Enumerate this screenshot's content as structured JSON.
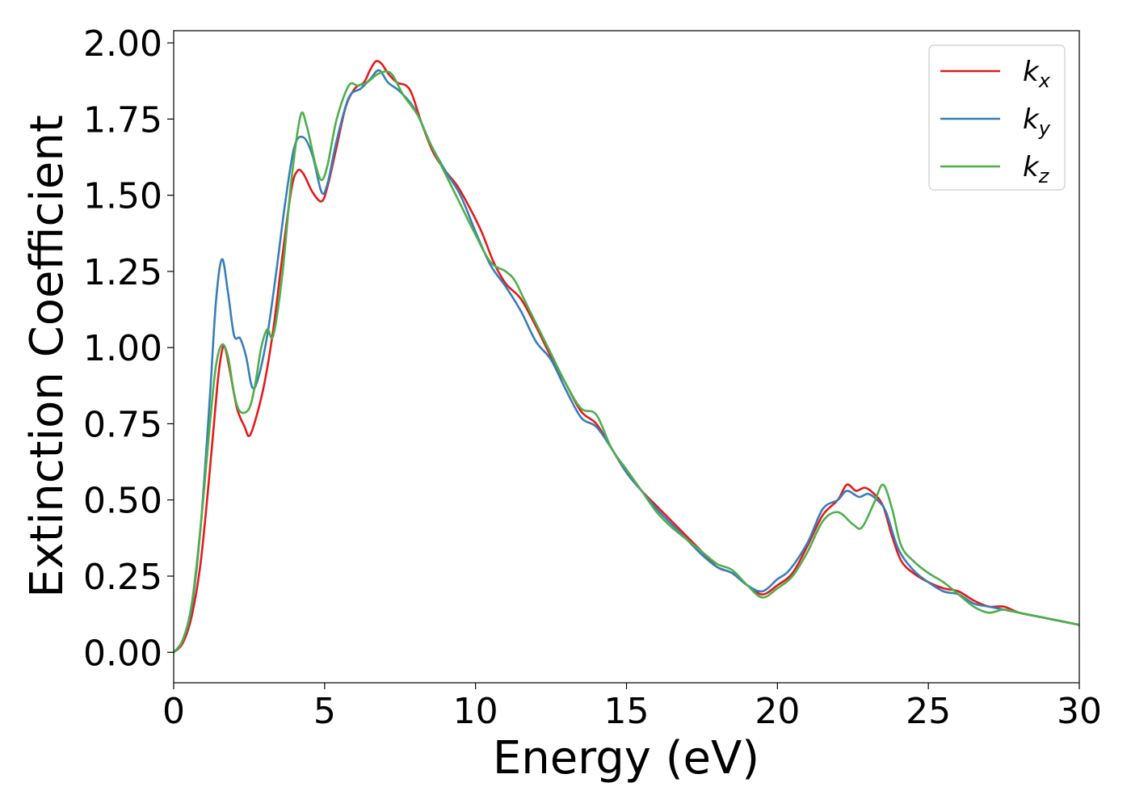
{
  "chart_data": {
    "type": "line",
    "title": "",
    "xlabel": "Energy (eV)",
    "ylabel": "Extinction Coefficient",
    "xlim": [
      0,
      30
    ],
    "ylim": [
      -0.1,
      2.04
    ],
    "x_ticks": [
      0,
      5,
      10,
      15,
      20,
      25,
      30
    ],
    "x_tick_labels": [
      "0",
      "5",
      "10",
      "15",
      "20",
      "25",
      "30"
    ],
    "y_ticks": [
      0.0,
      0.25,
      0.5,
      0.75,
      1.0,
      1.25,
      1.5,
      1.75,
      2.0
    ],
    "y_tick_labels": [
      "0.00",
      "0.25",
      "0.50",
      "0.75",
      "1.00",
      "1.25",
      "1.50",
      "1.75",
      "2.00"
    ],
    "grid": false,
    "legend_position": "top-right",
    "series": [
      {
        "name": "k_x",
        "label_main": "k",
        "label_sub": "x",
        "color": "#e41a1c",
        "points": [
          [
            0,
            0
          ],
          [
            0.3,
            0.03
          ],
          [
            0.6,
            0.12
          ],
          [
            0.9,
            0.3
          ],
          [
            1.2,
            0.6
          ],
          [
            1.45,
            0.88
          ],
          [
            1.6,
            0.99
          ],
          [
            1.7,
            1.0
          ],
          [
            1.85,
            0.93
          ],
          [
            2.1,
            0.8
          ],
          [
            2.35,
            0.74
          ],
          [
            2.5,
            0.71
          ],
          [
            2.7,
            0.76
          ],
          [
            3.0,
            0.88
          ],
          [
            3.3,
            1.06
          ],
          [
            3.6,
            1.3
          ],
          [
            3.9,
            1.52
          ],
          [
            4.1,
            1.58
          ],
          [
            4.3,
            1.57
          ],
          [
            4.6,
            1.51
          ],
          [
            4.9,
            1.48
          ],
          [
            5.1,
            1.53
          ],
          [
            5.4,
            1.66
          ],
          [
            5.7,
            1.79
          ],
          [
            6.0,
            1.85
          ],
          [
            6.3,
            1.87
          ],
          [
            6.5,
            1.91
          ],
          [
            6.7,
            1.94
          ],
          [
            6.9,
            1.93
          ],
          [
            7.1,
            1.9
          ],
          [
            7.4,
            1.87
          ],
          [
            7.7,
            1.86
          ],
          [
            7.9,
            1.83
          ],
          [
            8.2,
            1.74
          ],
          [
            8.6,
            1.64
          ],
          [
            9.0,
            1.58
          ],
          [
            9.4,
            1.53
          ],
          [
            9.8,
            1.46
          ],
          [
            10.2,
            1.38
          ],
          [
            10.6,
            1.28
          ],
          [
            11.0,
            1.21
          ],
          [
            11.5,
            1.16
          ],
          [
            12.0,
            1.07
          ],
          [
            12.5,
            0.97
          ],
          [
            13.0,
            0.88
          ],
          [
            13.5,
            0.79
          ],
          [
            14.0,
            0.75
          ],
          [
            14.5,
            0.67
          ],
          [
            15.0,
            0.59
          ],
          [
            15.5,
            0.53
          ],
          [
            16.0,
            0.48
          ],
          [
            16.5,
            0.43
          ],
          [
            17.0,
            0.38
          ],
          [
            17.5,
            0.33
          ],
          [
            18.0,
            0.28
          ],
          [
            18.5,
            0.26
          ],
          [
            19.0,
            0.22
          ],
          [
            19.5,
            0.19
          ],
          [
            20.0,
            0.22
          ],
          [
            20.5,
            0.26
          ],
          [
            21.0,
            0.35
          ],
          [
            21.5,
            0.45
          ],
          [
            22.0,
            0.5
          ],
          [
            22.3,
            0.55
          ],
          [
            22.6,
            0.53
          ],
          [
            22.9,
            0.54
          ],
          [
            23.2,
            0.52
          ],
          [
            23.5,
            0.48
          ],
          [
            23.8,
            0.38
          ],
          [
            24.1,
            0.3
          ],
          [
            24.5,
            0.26
          ],
          [
            25.0,
            0.23
          ],
          [
            25.5,
            0.21
          ],
          [
            26.0,
            0.2
          ],
          [
            26.5,
            0.17
          ],
          [
            27.0,
            0.15
          ],
          [
            27.5,
            0.15
          ],
          [
            28.0,
            0.13
          ],
          [
            28.5,
            0.12
          ],
          [
            29.0,
            0.11
          ],
          [
            29.5,
            0.1
          ],
          [
            30.0,
            0.09
          ]
        ]
      },
      {
        "name": "k_y",
        "label_main": "k",
        "label_sub": "y",
        "color": "#377eb8",
        "points": [
          [
            0,
            0
          ],
          [
            0.3,
            0.04
          ],
          [
            0.6,
            0.15
          ],
          [
            0.9,
            0.42
          ],
          [
            1.2,
            0.84
          ],
          [
            1.4,
            1.15
          ],
          [
            1.6,
            1.29
          ],
          [
            1.8,
            1.18
          ],
          [
            2.0,
            1.04
          ],
          [
            2.2,
            1.03
          ],
          [
            2.4,
            0.97
          ],
          [
            2.6,
            0.87
          ],
          [
            2.8,
            0.9
          ],
          [
            3.1,
            1.04
          ],
          [
            3.4,
            1.25
          ],
          [
            3.7,
            1.48
          ],
          [
            4.0,
            1.66
          ],
          [
            4.3,
            1.69
          ],
          [
            4.6,
            1.63
          ],
          [
            4.9,
            1.51
          ],
          [
            5.1,
            1.54
          ],
          [
            5.4,
            1.68
          ],
          [
            5.8,
            1.82
          ],
          [
            6.2,
            1.85
          ],
          [
            6.5,
            1.88
          ],
          [
            6.8,
            1.91
          ],
          [
            7.1,
            1.87
          ],
          [
            7.5,
            1.84
          ],
          [
            8.0,
            1.78
          ],
          [
            8.5,
            1.67
          ],
          [
            9.0,
            1.58
          ],
          [
            9.5,
            1.5
          ],
          [
            10.0,
            1.38
          ],
          [
            10.5,
            1.27
          ],
          [
            11.0,
            1.2
          ],
          [
            11.5,
            1.12
          ],
          [
            12.0,
            1.02
          ],
          [
            12.5,
            0.96
          ],
          [
            13.0,
            0.86
          ],
          [
            13.5,
            0.77
          ],
          [
            14.0,
            0.74
          ],
          [
            14.5,
            0.67
          ],
          [
            15.0,
            0.59
          ],
          [
            15.5,
            0.53
          ],
          [
            16.0,
            0.47
          ],
          [
            16.5,
            0.42
          ],
          [
            17.0,
            0.37
          ],
          [
            17.5,
            0.32
          ],
          [
            18.0,
            0.28
          ],
          [
            18.5,
            0.26
          ],
          [
            19.0,
            0.22
          ],
          [
            19.5,
            0.2
          ],
          [
            20.0,
            0.24
          ],
          [
            20.4,
            0.27
          ],
          [
            21.0,
            0.36
          ],
          [
            21.5,
            0.47
          ],
          [
            22.0,
            0.5
          ],
          [
            22.3,
            0.53
          ],
          [
            22.7,
            0.51
          ],
          [
            23.0,
            0.52
          ],
          [
            23.3,
            0.5
          ],
          [
            23.6,
            0.46
          ],
          [
            24.0,
            0.34
          ],
          [
            24.5,
            0.27
          ],
          [
            25.0,
            0.23
          ],
          [
            25.5,
            0.2
          ],
          [
            26.0,
            0.19
          ],
          [
            26.5,
            0.16
          ],
          [
            27.0,
            0.15
          ],
          [
            27.5,
            0.14
          ],
          [
            28.0,
            0.13
          ],
          [
            28.5,
            0.12
          ],
          [
            29.0,
            0.11
          ],
          [
            29.5,
            0.1
          ],
          [
            30.0,
            0.09
          ]
        ]
      },
      {
        "name": "k_z",
        "label_main": "k",
        "label_sub": "z",
        "color": "#4daf4a",
        "points": [
          [
            0,
            0
          ],
          [
            0.3,
            0.04
          ],
          [
            0.6,
            0.16
          ],
          [
            0.9,
            0.42
          ],
          [
            1.2,
            0.75
          ],
          [
            1.4,
            0.94
          ],
          [
            1.6,
            1.01
          ],
          [
            1.8,
            0.97
          ],
          [
            2.0,
            0.85
          ],
          [
            2.2,
            0.79
          ],
          [
            2.5,
            0.8
          ],
          [
            2.7,
            0.88
          ],
          [
            2.9,
            1.0
          ],
          [
            3.1,
            1.06
          ],
          [
            3.3,
            1.04
          ],
          [
            3.6,
            1.24
          ],
          [
            3.9,
            1.55
          ],
          [
            4.2,
            1.76
          ],
          [
            4.4,
            1.73
          ],
          [
            4.7,
            1.6
          ],
          [
            4.9,
            1.55
          ],
          [
            5.1,
            1.6
          ],
          [
            5.4,
            1.75
          ],
          [
            5.8,
            1.86
          ],
          [
            6.1,
            1.86
          ],
          [
            6.4,
            1.87
          ],
          [
            6.8,
            1.9
          ],
          [
            7.2,
            1.9
          ],
          [
            7.6,
            1.83
          ],
          [
            8.1,
            1.76
          ],
          [
            8.5,
            1.67
          ],
          [
            9.0,
            1.57
          ],
          [
            9.5,
            1.47
          ],
          [
            10.0,
            1.37
          ],
          [
            10.5,
            1.28
          ],
          [
            11.0,
            1.25
          ],
          [
            11.3,
            1.22
          ],
          [
            11.6,
            1.16
          ],
          [
            12.0,
            1.08
          ],
          [
            12.5,
            0.98
          ],
          [
            13.0,
            0.88
          ],
          [
            13.5,
            0.8
          ],
          [
            14.0,
            0.78
          ],
          [
            14.5,
            0.67
          ],
          [
            15.0,
            0.6
          ],
          [
            15.5,
            0.53
          ],
          [
            16.0,
            0.46
          ],
          [
            16.5,
            0.41
          ],
          [
            17.0,
            0.37
          ],
          [
            17.5,
            0.33
          ],
          [
            18.0,
            0.29
          ],
          [
            18.5,
            0.27
          ],
          [
            19.0,
            0.22
          ],
          [
            19.5,
            0.18
          ],
          [
            20.0,
            0.21
          ],
          [
            20.5,
            0.25
          ],
          [
            21.0,
            0.33
          ],
          [
            21.5,
            0.43
          ],
          [
            22.0,
            0.46
          ],
          [
            22.5,
            0.42
          ],
          [
            22.8,
            0.41
          ],
          [
            23.2,
            0.49
          ],
          [
            23.5,
            0.55
          ],
          [
            23.8,
            0.47
          ],
          [
            24.1,
            0.35
          ],
          [
            24.5,
            0.3
          ],
          [
            25.0,
            0.26
          ],
          [
            25.5,
            0.23
          ],
          [
            26.0,
            0.19
          ],
          [
            26.5,
            0.15
          ],
          [
            27.0,
            0.13
          ],
          [
            27.5,
            0.14
          ],
          [
            28.0,
            0.13
          ],
          [
            28.5,
            0.12
          ],
          [
            29.0,
            0.11
          ],
          [
            29.5,
            0.1
          ],
          [
            30.0,
            0.09
          ]
        ]
      }
    ]
  }
}
